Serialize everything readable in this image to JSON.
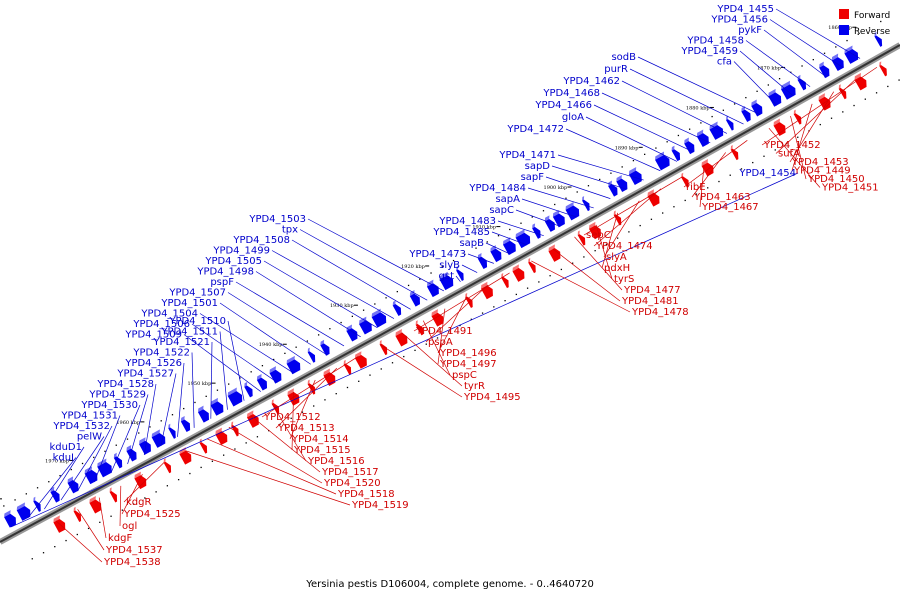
{
  "caption": "Yersinia pestis D106004, complete genome. - 0..4640720",
  "legend": {
    "forward_label": "Forward",
    "reverse_label": "Reverse",
    "forward_color": "#ee0000",
    "reverse_color": "#0000ee"
  },
  "ticks": [
    "1860 kbp",
    "1870 kbp",
    "1880 kbp",
    "1890 kbp",
    "1900 kbp",
    "1910 kbp",
    "1920 kbp",
    "1930 kbp",
    "1940 kbp",
    "1950 kbp",
    "1960 kbp",
    "1970 kbp",
    "1980 kbp"
  ],
  "reverse_labels": [
    "YPD4_1455",
    "YPD4_1456",
    "pykF",
    "YPD4_1458",
    "YPD4_1459",
    "cfa",
    "sodB",
    "purR",
    "YPD4_1462",
    "YPD4_1468",
    "YPD4_1466",
    "gloA",
    "YPD4_1472",
    "YPD4_1471",
    "sapD",
    "sapF",
    "YPD4_1484",
    "sapA",
    "sapC",
    "YPD4_1483",
    "YPD4_1485",
    "sapB",
    "YPD4_1473",
    "slyB",
    "gst",
    "YPD4_1503",
    "tpx",
    "YPD4_1508",
    "YPD4_1499",
    "YPD4_1505",
    "YPD4_1498",
    "pspF",
    "YPD4_1507",
    "YPD4_1501",
    "YPD4_1504",
    "YPD4_1506",
    "YPD4_1509",
    "YPD4_1510",
    "YPD4_1511",
    "YPD4_1521",
    "YPD4_1522",
    "YPD4_1526",
    "YPD4_1527",
    "YPD4_1528",
    "YPD4_1529",
    "YPD4_1530",
    "YPD4_1531",
    "YPD4_1532",
    "pelW",
    "kduD1",
    "kduI",
    "YPD4_1454"
  ],
  "forward_labels": [
    "YPD4_1452",
    "sufA",
    "YPD4_1453",
    "YPD4_1449",
    "YPD4_1450",
    "YPD4_1451",
    "ribE",
    "YPD4_1463",
    "YPD4_1467",
    "sepC",
    "YPD4_1474",
    "slyA",
    "pdxH",
    "tyrS",
    "YPD4_1477",
    "YPD4_1481",
    "YPD4_1478",
    "YPD4_1491",
    "pspA",
    "YPD4_1496",
    "YPD4_1497",
    "pspC",
    "tyrR",
    "YPD4_1495",
    "YPD4_1512",
    "YPD4_1513",
    "YPD4_1514",
    "YPD4_1515",
    "YPD4_1516",
    "YPD4_1517",
    "YPD4_1520",
    "YPD4_1518",
    "YPD4_1519",
    "kdgR",
    "YPD4_1525",
    "ogl",
    "kdgF",
    "YPD4_1537",
    "YPD4_1538"
  ]
}
